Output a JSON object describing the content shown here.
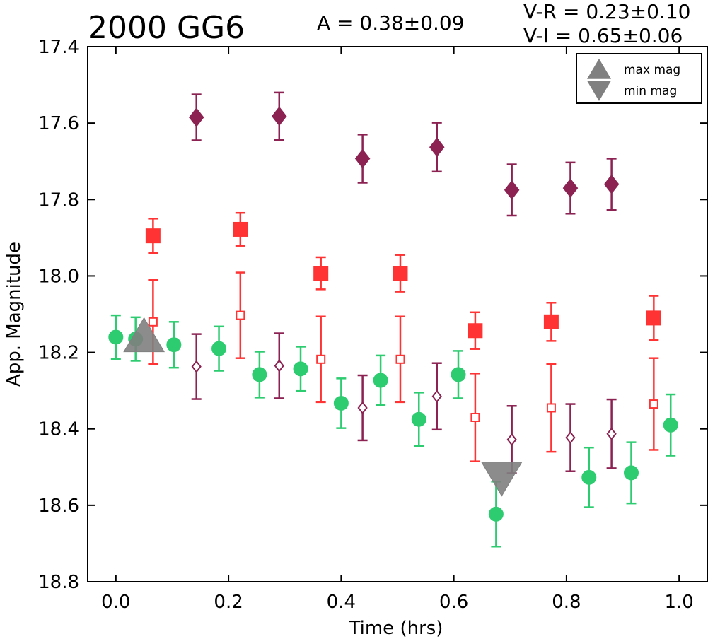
{
  "header": {
    "title": "2000 GG6",
    "amplitude": "A  = 0.38±0.09",
    "v_r": "V-R = 0.23±0.10",
    "v_i": "V-I  = 0.65±0.06"
  },
  "chart_data": {
    "type": "scatter",
    "title": "2000 GG6",
    "xlabel": "Time (hrs)",
    "ylabel": "App. Magnitude",
    "xlim": [
      -0.05,
      1.05
    ],
    "ylim": [
      17.4,
      18.8
    ],
    "y_inverted": true,
    "xticks": [
      "0.0",
      "0.2",
      "0.4",
      "0.6",
      "0.8",
      "1.0"
    ],
    "yticks": [
      "17.4",
      "17.6",
      "17.8",
      "18.0",
      "18.2",
      "18.4",
      "18.6",
      "18.8"
    ],
    "grid": false,
    "legend": {
      "placement": "top-right",
      "entries": [
        {
          "label": "max mag",
          "marker": "triangle-up",
          "color": "#808080"
        },
        {
          "label": "min mag",
          "marker": "triangle-down",
          "color": "#808080"
        }
      ]
    },
    "series": [
      {
        "marker": "circle",
        "filled": true,
        "color": "#2ecc71",
        "points": [
          [
            0.0,
            18.16,
            0.057
          ],
          [
            0.035,
            18.165,
            0.057
          ],
          [
            0.103,
            18.18,
            0.06
          ],
          [
            0.183,
            18.19,
            0.058
          ],
          [
            0.255,
            18.258,
            0.06
          ],
          [
            0.328,
            18.243,
            0.058
          ],
          [
            0.4,
            18.333,
            0.065
          ],
          [
            0.47,
            18.273,
            0.065
          ],
          [
            0.538,
            18.375,
            0.07
          ],
          [
            0.608,
            18.258,
            0.062
          ],
          [
            0.675,
            18.623,
            0.085
          ],
          [
            0.84,
            18.527,
            0.078
          ],
          [
            0.915,
            18.515,
            0.08
          ],
          [
            0.985,
            18.39,
            0.08
          ]
        ]
      },
      {
        "marker": "square",
        "filled": true,
        "color": "#ff3333",
        "points": [
          [
            0.066,
            17.895,
            0.045
          ],
          [
            0.221,
            17.878,
            0.043
          ],
          [
            0.364,
            17.993,
            0.042
          ],
          [
            0.505,
            17.993,
            0.048
          ],
          [
            0.638,
            18.143,
            0.048
          ],
          [
            0.773,
            18.12,
            0.05
          ],
          [
            0.955,
            18.11,
            0.058
          ]
        ]
      },
      {
        "marker": "square",
        "filled": false,
        "color": "#ff3333",
        "points": [
          [
            0.066,
            18.12,
            0.11
          ],
          [
            0.221,
            18.103,
            0.112
          ],
          [
            0.364,
            18.218,
            0.112
          ],
          [
            0.505,
            18.218,
            0.112
          ],
          [
            0.638,
            18.37,
            0.115
          ],
          [
            0.773,
            18.345,
            0.115
          ],
          [
            0.955,
            18.335,
            0.12
          ]
        ]
      },
      {
        "marker": "diamond",
        "filled": true,
        "color": "#8b2252",
        "points": [
          [
            0.143,
            17.585,
            0.06
          ],
          [
            0.29,
            17.582,
            0.062
          ],
          [
            0.438,
            17.693,
            0.063
          ],
          [
            0.57,
            17.663,
            0.064
          ],
          [
            0.703,
            17.775,
            0.067
          ],
          [
            0.807,
            17.77,
            0.067
          ],
          [
            0.88,
            17.76,
            0.067
          ]
        ]
      },
      {
        "marker": "diamond",
        "filled": false,
        "color": "#8b2252",
        "points": [
          [
            0.143,
            18.237,
            0.085
          ],
          [
            0.29,
            18.235,
            0.085
          ],
          [
            0.438,
            18.345,
            0.085
          ],
          [
            0.57,
            18.315,
            0.087
          ],
          [
            0.703,
            18.428,
            0.088
          ],
          [
            0.807,
            18.423,
            0.088
          ],
          [
            0.88,
            18.413,
            0.09
          ]
        ]
      }
    ],
    "extrema": [
      {
        "label": "max mag",
        "marker": "triangle-up",
        "x": 0.05,
        "y": 18.165,
        "color": "#808080"
      },
      {
        "label": "min mag",
        "marker": "triangle-down",
        "x": 0.685,
        "y": 18.52,
        "color": "#808080"
      }
    ]
  }
}
